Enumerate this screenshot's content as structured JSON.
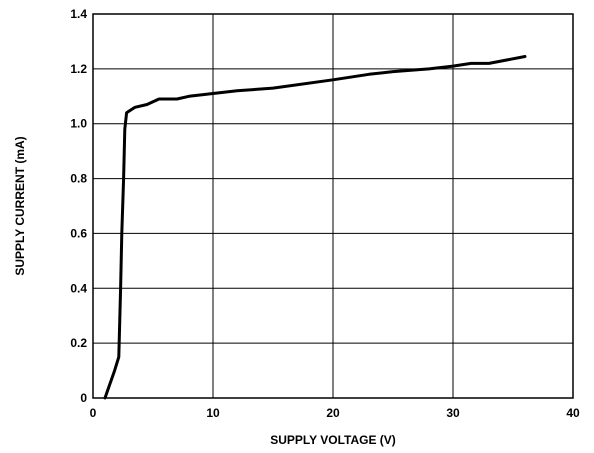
{
  "chart_data": {
    "type": "line",
    "title": "",
    "xlabel": "SUPPLY VOLTAGE (V)",
    "ylabel": "SUPPLY CURRENT (mA)",
    "xlim": [
      0,
      40
    ],
    "ylim": [
      0,
      1.4
    ],
    "xticks": [
      0,
      10,
      20,
      30,
      40
    ],
    "yticks": [
      0,
      0.2,
      0.4,
      0.6,
      0.8,
      1.0,
      1.2,
      1.4
    ],
    "ytick_labels": [
      "0",
      "0.2",
      "0.4",
      "0.6",
      "0.8",
      "1.0",
      "1.2",
      "1.4"
    ],
    "grid": true,
    "legend": "none",
    "series": [
      {
        "color": "#000000",
        "x": [
          1.0,
          1.4,
          1.8,
          2.15,
          2.3,
          2.4,
          2.55,
          2.65,
          2.8,
          3.5,
          4.5,
          5.5,
          7.0,
          8.0,
          10.0,
          12.0,
          15.0,
          20.0,
          23.0,
          25.0,
          28.0,
          30.0,
          31.5,
          33.0,
          36.0
        ],
        "y": [
          0.0,
          0.05,
          0.1,
          0.15,
          0.4,
          0.6,
          0.8,
          0.98,
          1.04,
          1.06,
          1.07,
          1.09,
          1.09,
          1.1,
          1.11,
          1.12,
          1.13,
          1.16,
          1.18,
          1.19,
          1.2,
          1.21,
          1.22,
          1.22,
          1.245
        ]
      }
    ]
  }
}
